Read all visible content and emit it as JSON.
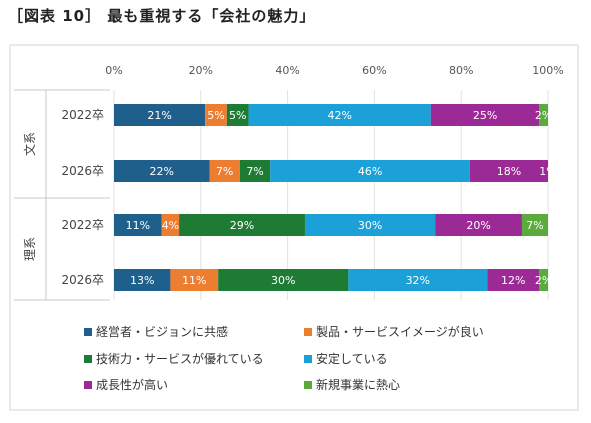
{
  "page": {
    "title": "［図表 10］ 最も重視する「会社の魅力」"
  },
  "chart_data": {
    "type": "bar",
    "stacked": true,
    "orientation": "horizontal",
    "xlim": [
      0,
      100
    ],
    "xticks": [
      "0%",
      "20%",
      "40%",
      "60%",
      "80%",
      "100%"
    ],
    "grid": true,
    "legend_position": "bottom",
    "groups": [
      {
        "name": "文系",
        "categories": [
          "2022卒",
          "2026卒"
        ]
      },
      {
        "name": "理系",
        "categories": [
          "2022卒",
          "2026卒"
        ]
      }
    ],
    "rows": [
      {
        "group": "文系",
        "label": "2022卒",
        "values": [
          21,
          5,
          5,
          42,
          25,
          2
        ],
        "labels": [
          "21%",
          "5%",
          "5%",
          "42%",
          "25%",
          "2%"
        ]
      },
      {
        "group": "文系",
        "label": "2026卒",
        "values": [
          22,
          7,
          7,
          46,
          18,
          1
        ],
        "labels": [
          "22%",
          "7%",
          "7%",
          "46%",
          "18%",
          "1%"
        ]
      },
      {
        "group": "理系",
        "label": "2022卒",
        "values": [
          11,
          4,
          29,
          30,
          20,
          7
        ],
        "labels": [
          "11%",
          "4%",
          "29%",
          "30%",
          "20%",
          "7%"
        ]
      },
      {
        "group": "理系",
        "label": "2026卒",
        "values": [
          13,
          11,
          30,
          32,
          12,
          2
        ],
        "labels": [
          "13%",
          "11%",
          "30%",
          "32%",
          "12%",
          "2%"
        ]
      }
    ],
    "series": [
      {
        "name": "経営者・ビジョンに共感",
        "color": "#1f5f8b"
      },
      {
        "name": "製品・サービスイメージが良い",
        "color": "#ed7d31"
      },
      {
        "name": "技術力・サービスが優れている",
        "color": "#1e7b34"
      },
      {
        "name": "安定している",
        "color": "#1ba1d8"
      },
      {
        "name": "成長性が高い",
        "color": "#9c2a96"
      },
      {
        "name": "新規事業に熱心",
        "color": "#5aaa3c"
      }
    ]
  }
}
